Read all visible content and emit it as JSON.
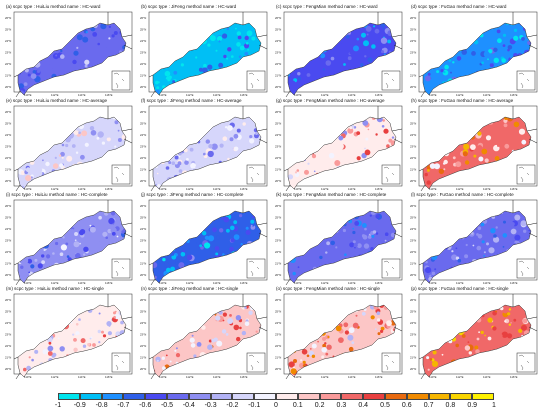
{
  "colors": {
    "scale": [
      "#00e5ee",
      "#00bff5",
      "#1e90ff",
      "#2f5fe8",
      "#4a4af0",
      "#6a6aee",
      "#8f8ff2",
      "#b2b2f5",
      "#d6d6fb",
      "#f3f3ff",
      "#ffecec",
      "#fcc6c6",
      "#f99a9a",
      "#f06868",
      "#e84040",
      "#e86a10",
      "#f08a00",
      "#f5b500",
      "#f8d400",
      "#fff200"
    ],
    "coast": "#111111",
    "land_outline": "#333333"
  },
  "colorbar": {
    "labels": [
      "-1",
      "-0.9",
      "-0.8",
      "-0.7",
      "-0.6",
      "-0.5",
      "-0.4",
      "-0.3",
      "-0.2",
      "-0.1",
      "0",
      "0.1",
      "0.2",
      "0.3",
      "0.4",
      "0.5",
      "0.6",
      "0.7",
      "0.8",
      "0.9",
      "1"
    ]
  },
  "axes": {
    "lat_ticks": [
      "26°N",
      "25°N",
      "24°N",
      "23°N",
      "22°N",
      "21°N",
      "20°N"
    ],
    "lon_ticks": [
      "110°E",
      "112°E",
      "114°E",
      "116°E"
    ]
  },
  "panels": [
    {
      "title": "(a) scpc type : HuiLiu method name : HC-ward",
      "value": -0.45
    },
    {
      "title": "(b) scpc type : JiFeng method name : HC-ward",
      "value": -0.85
    },
    {
      "title": "(c) scpc type : FengMian method name : HC-ward",
      "value": -0.6
    },
    {
      "title": "(d) scpc type : FuGao method name : HC-ward",
      "value": -0.75
    },
    {
      "title": "(e) scpc type : HuiLiu method name : HC-average",
      "value": -0.15
    },
    {
      "title": "(f) scpc type : JiFeng method name : HC-average",
      "value": -0.2
    },
    {
      "title": "(g) scpc type : FengMian method name : HC-average",
      "value": 0.05
    },
    {
      "title": "(h) scpc type : FuGao method name : HC-average",
      "value": 0.35
    },
    {
      "title": "(i) scpc type : HuiLiu method name : HC-complete",
      "value": -0.35
    },
    {
      "title": "(j) scpc type : JiFeng method name : HC-complete",
      "value": -0.65
    },
    {
      "title": "(k) scpc type : FengMian method name : HC-complete",
      "value": -0.5
    },
    {
      "title": "(l) scpc type : FuGao method name : HC-complete",
      "value": -0.45
    },
    {
      "title": "(m) scpc type : HuiLiu method name : HC-single",
      "value": 0.05
    },
    {
      "title": "(n) scpc type : JiFeng method name : HC-single",
      "value": 0.1
    },
    {
      "title": "(o) scpc type : FengMian method name : HC-single",
      "value": 0.2
    },
    {
      "title": "(p) scpc type : FuGao method name : HC-single",
      "value": 0.4
    }
  ]
}
